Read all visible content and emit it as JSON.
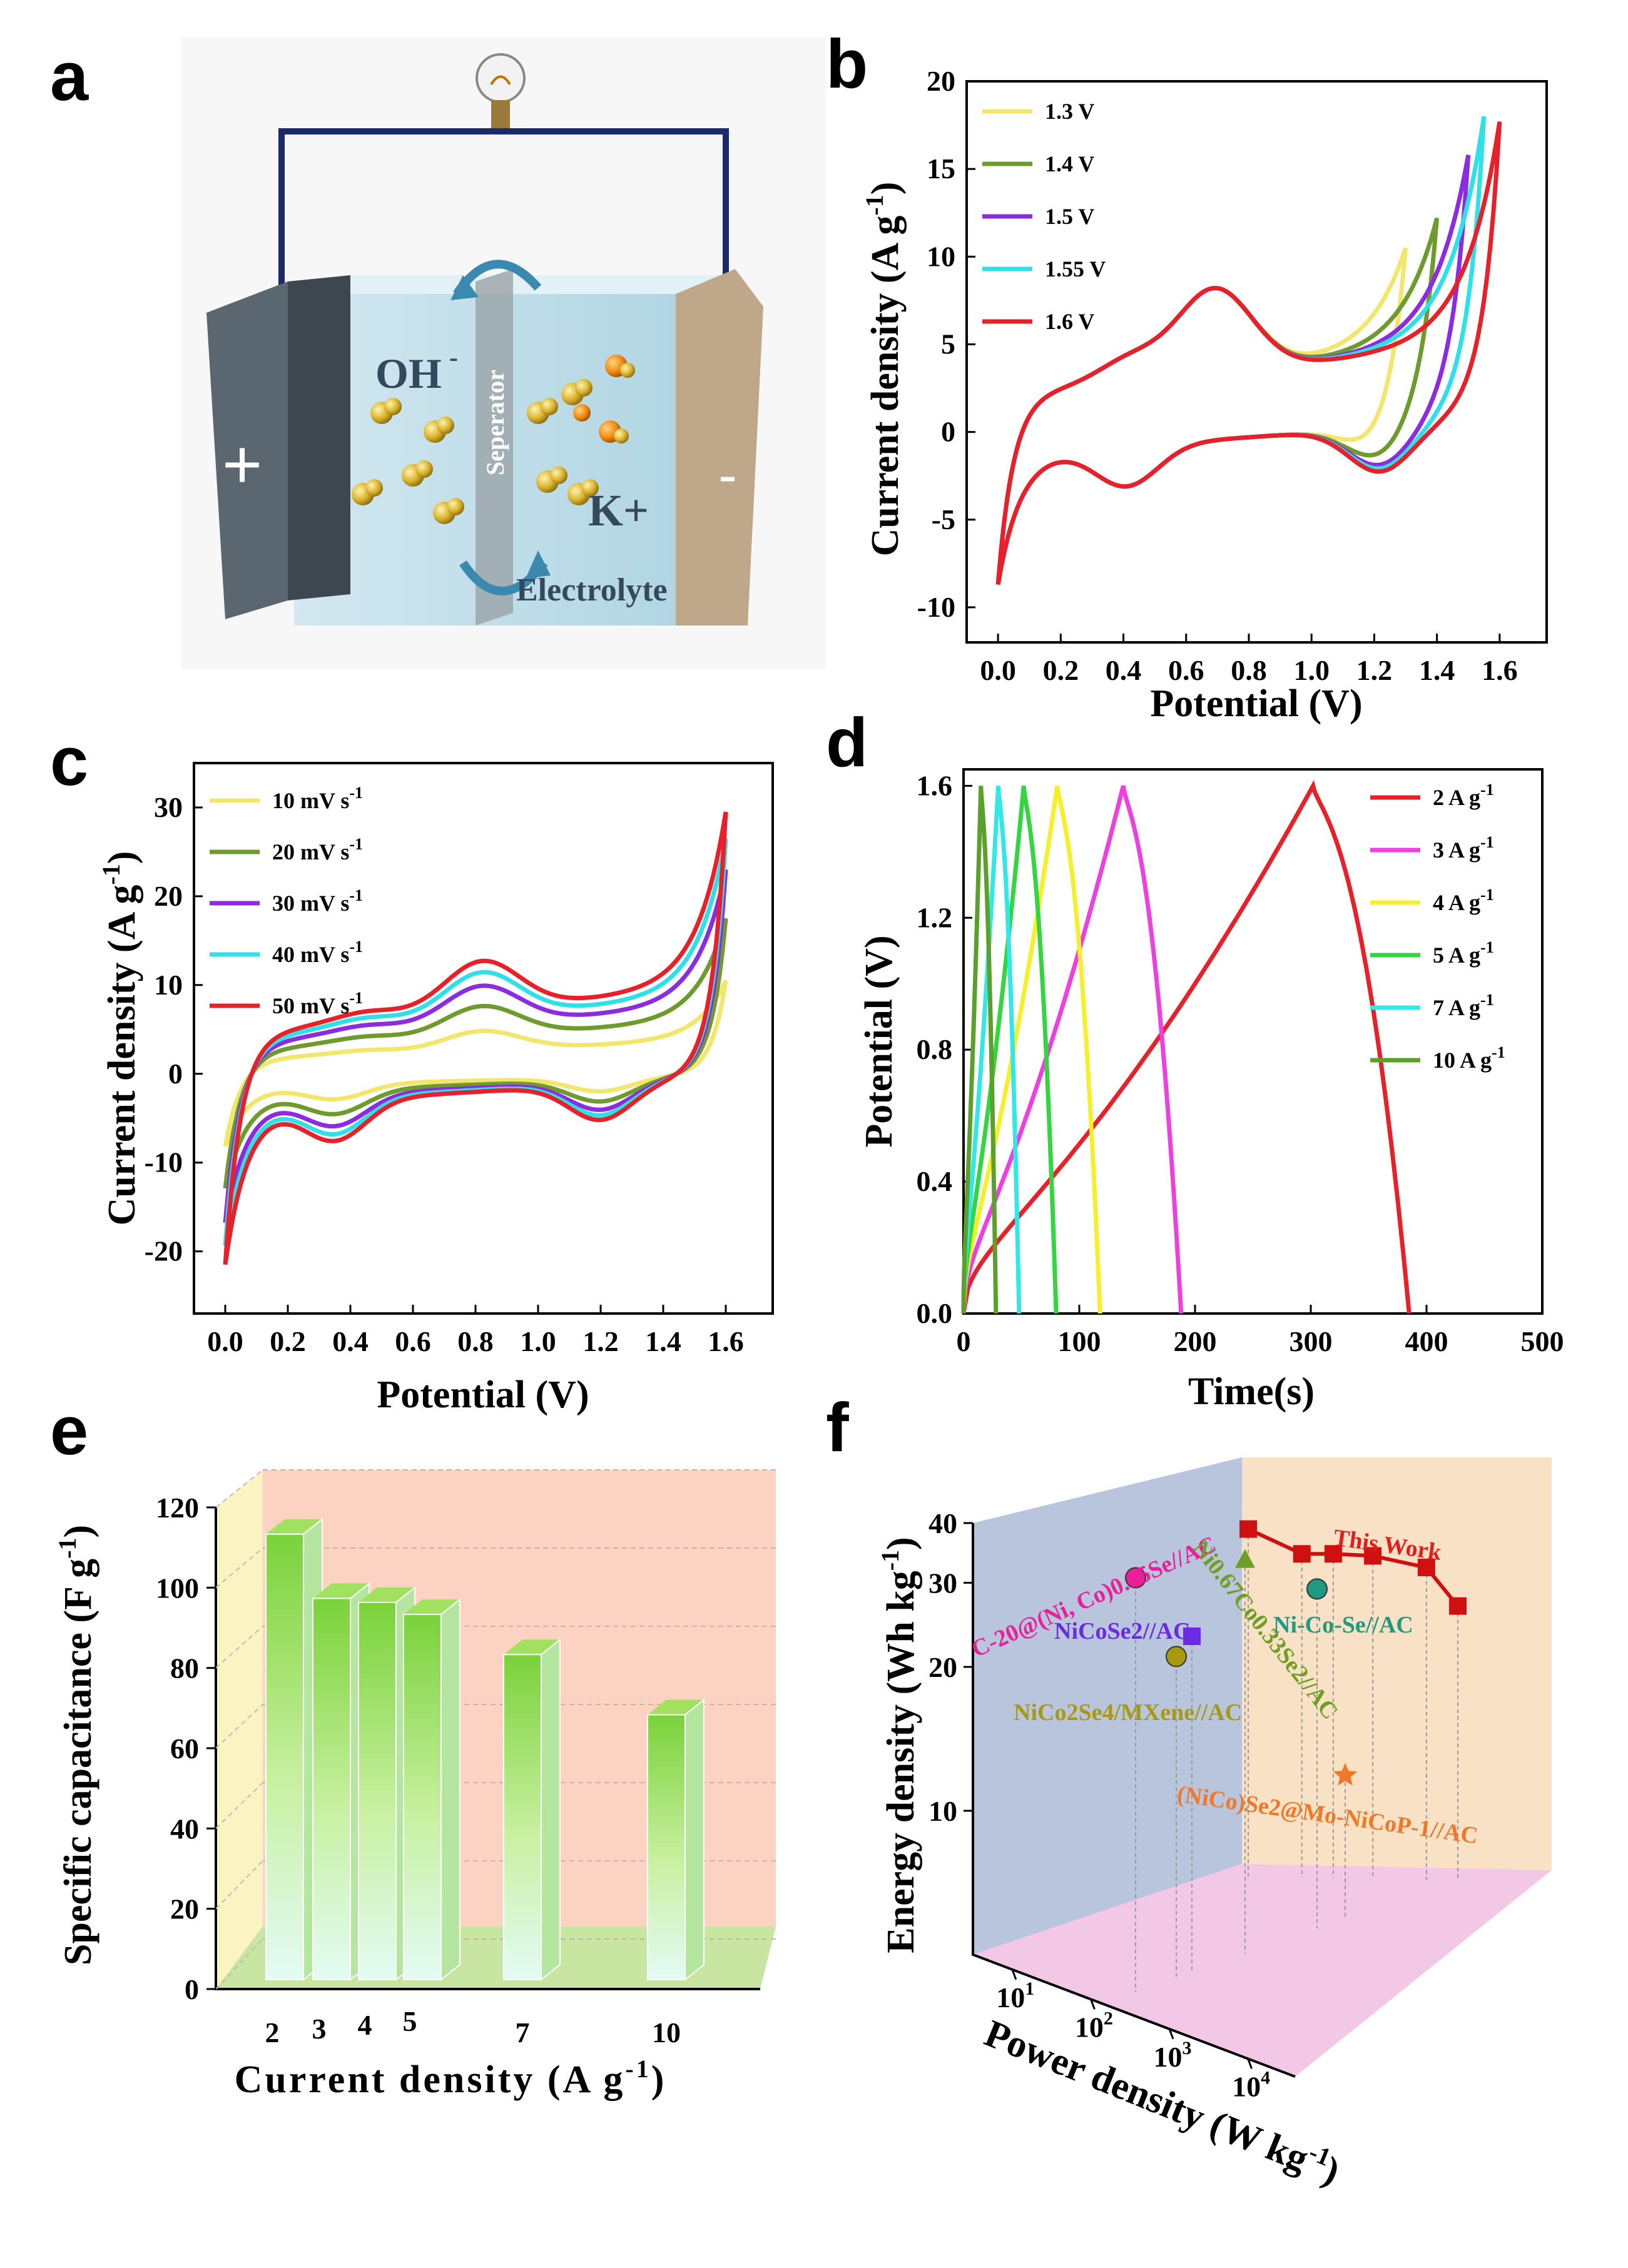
{
  "panels": {
    "a": {
      "label": "a",
      "texts": {
        "ion1": "OH",
        "ion1_sup": "-",
        "ion2": "K+",
        "separator": "Seperator",
        "electrolyte": "Electrolyte",
        "plus": "+",
        "minus": "-"
      }
    },
    "b": {
      "label": "b"
    },
    "c": {
      "label": "c"
    },
    "d": {
      "label": "d"
    },
    "e": {
      "label": "e"
    },
    "f": {
      "label": "f"
    }
  },
  "chart_data": [
    {
      "id": "b",
      "type": "line",
      "xlabel": "Potential (V)",
      "ylabel": "Current density (A g",
      "ylabel_sup": "-1",
      "ylabel_end": ")",
      "xlim": [
        -0.1,
        1.75
      ],
      "ylim": [
        -12,
        20
      ],
      "xticks": [
        0.0,
        0.2,
        0.4,
        0.6,
        0.8,
        1.0,
        1.2,
        1.4,
        1.6
      ],
      "xtick_labels": [
        "0.0",
        "0.2",
        "0.4",
        "0.6",
        "0.8",
        "1.0",
        "1.2",
        "1.4",
        "1.6"
      ],
      "yticks": [
        -10,
        -5,
        0,
        5,
        10,
        15,
        20
      ],
      "ytick_labels": [
        "-10",
        "-5",
        "0",
        "5",
        "10",
        "15",
        "20"
      ],
      "legend": "top-left",
      "series": [
        {
          "name": "1.3 V",
          "color": "#f2e66b",
          "vmax": 1.3,
          "imax": 10.5,
          "inflect": 1.1
        },
        {
          "name": "1.4 V",
          "color": "#6f9a2e",
          "vmax": 1.4,
          "imax": 12.2,
          "inflect": 1.2
        },
        {
          "name": "1.5 V",
          "color": "#8b2be2",
          "vmax": 1.5,
          "imax": 15.8,
          "inflect": 1.28
        },
        {
          "name": "1.55 V",
          "color": "#30e0e8",
          "vmax": 1.55,
          "imax": 18.0,
          "inflect": 1.32
        },
        {
          "name": "1.6 V",
          "color": "#e8202a",
          "vmax": 1.6,
          "imax": 17.7,
          "inflect": 1.35
        }
      ]
    },
    {
      "id": "c",
      "type": "line",
      "xlabel": "Potential (V)",
      "ylabel": "Current density (A g",
      "ylabel_sup": "-1",
      "ylabel_end": ")",
      "xlim": [
        -0.1,
        1.75
      ],
      "ylim": [
        -27,
        35
      ],
      "xticks": [
        0.0,
        0.2,
        0.4,
        0.6,
        0.8,
        1.0,
        1.2,
        1.4,
        1.6
      ],
      "xtick_labels": [
        "0.0",
        "0.2",
        "0.4",
        "0.6",
        "0.8",
        "1.0",
        "1.2",
        "1.4",
        "1.6"
      ],
      "yticks": [
        -20,
        -10,
        0,
        10,
        20,
        30
      ],
      "ytick_labels": [
        "-20",
        "-10",
        "0",
        "10",
        "20",
        "30"
      ],
      "legend": "top-left",
      "series": [
        {
          "name": "10 mV s",
          "sup": "-1",
          "color": "#f2e66b",
          "scale": 0.38,
          "vmax": 1.6,
          "imax": 10.5
        },
        {
          "name": "20 mV s",
          "sup": "-1",
          "color": "#6f9a2e",
          "scale": 0.6,
          "vmax": 1.6,
          "imax": 17.5
        },
        {
          "name": "30 mV s",
          "sup": "-1",
          "color": "#8b2be2",
          "scale": 0.78,
          "vmax": 1.6,
          "imax": 23.0
        },
        {
          "name": "40 mV s",
          "sup": "-1",
          "color": "#30e0e8",
          "scale": 0.9,
          "vmax": 1.6,
          "imax": 26.5
        },
        {
          "name": "50 mV s",
          "sup": "-1",
          "color": "#e8202a",
          "scale": 1.0,
          "vmax": 1.6,
          "imax": 29.5
        }
      ]
    },
    {
      "id": "d",
      "type": "line",
      "xlabel": "Time(s)",
      "ylabel": "Potential (V)",
      "xlim": [
        0,
        500
      ],
      "ylim": [
        0,
        1.65
      ],
      "xticks": [
        0,
        100,
        200,
        300,
        400,
        500
      ],
      "xtick_labels": [
        "0",
        "100",
        "200",
        "300",
        "400",
        "500"
      ],
      "yticks": [
        0.0,
        0.4,
        0.8,
        1.2,
        1.6
      ],
      "ytick_labels": [
        "0.0",
        "0.4",
        "0.8",
        "1.2",
        "1.6"
      ],
      "legend": "top-right",
      "series": [
        {
          "name": "2 A g",
          "sup": "-1",
          "color": "#e8202a",
          "t_charge": 302,
          "t_end": 385
        },
        {
          "name": "3 A g",
          "sup": "-1",
          "color": "#ee3fe0",
          "t_charge": 138,
          "t_end": 188
        },
        {
          "name": "4 A g",
          "sup": "-1",
          "color": "#f5f02a",
          "t_charge": 81,
          "t_end": 118
        },
        {
          "name": "5 A g",
          "sup": "-1",
          "color": "#33d640",
          "t_charge": 52,
          "t_end": 80
        },
        {
          "name": "7 A g",
          "sup": "-1",
          "color": "#30e8e8",
          "t_charge": 30,
          "t_end": 48
        },
        {
          "name": "10 A g",
          "sup": "-1",
          "color": "#5aa02a",
          "t_charge": 15,
          "t_end": 28
        }
      ]
    },
    {
      "id": "e",
      "type": "bar",
      "xlabel": "Current density (A g",
      "xlabel_sup": "-1",
      "xlabel_end": ")",
      "ylabel": "Specific capacitance (F g",
      "ylabel_sup": "-1",
      "ylabel_end": ")",
      "ylim": [
        0,
        120
      ],
      "yticks": [
        0,
        20,
        40,
        60,
        80,
        100,
        120
      ],
      "ytick_labels": [
        "0",
        "20",
        "40",
        "60",
        "80",
        "100",
        "120"
      ],
      "categories": [
        "2",
        "3",
        "4",
        "5",
        "7",
        "10"
      ],
      "values": [
        111,
        95,
        94,
        91,
        81,
        66
      ]
    },
    {
      "id": "f",
      "type": "scatter",
      "xlabel": "Power density (W kg",
      "xlabel_sup": "-1",
      "xlabel_end": ")",
      "ylabel": "Energy density (Wh kg",
      "ylabel_sup": "-1",
      "ylabel_end": ")",
      "ylim": [
        5,
        40
      ],
      "yticks": [
        10,
        20,
        30,
        40
      ],
      "ytick_labels": [
        "10",
        "20",
        "30",
        "40"
      ],
      "xtick_labels": [
        "10",
        "10",
        "10",
        "10"
      ],
      "xtick_sups": [
        "1",
        "2",
        "3",
        "4"
      ],
      "this_work": {
        "label": "This Work",
        "power": [
          800,
          1600,
          2400,
          4000,
          8000,
          12000
        ],
        "energy": [
          35.5,
          31.5,
          31.5,
          31.2,
          29.5,
          24.5
        ]
      },
      "points": [
        {
          "label": "C-20@(Ni, Co)0.85Se//AC",
          "energy": 28.5,
          "color": "#e8209a",
          "marker": "sphere"
        },
        {
          "label": "NiCoSe2//AC",
          "energy": 21.5,
          "color": "#6a2be2",
          "marker": "cube"
        },
        {
          "label": "NiCo2Se4/MXene//AC",
          "energy": 19.5,
          "color": "#a89a10",
          "marker": "sphere"
        },
        {
          "label": "Ni0.67Co0.33Se2//AC",
          "energy": 31.0,
          "color": "#6e9e24",
          "marker": "triangle"
        },
        {
          "label": "Ni-Co-Se//AC",
          "energy": 27.0,
          "color": "#1e9a80",
          "marker": "sphere"
        },
        {
          "label": "(NiCo)Se2@Mo-NiCoP-1//AC",
          "energy": 11.0,
          "color": "#f07828",
          "marker": "star"
        }
      ]
    }
  ],
  "colors": {
    "frame": "#000000",
    "wire": "#1a2a6a"
  }
}
